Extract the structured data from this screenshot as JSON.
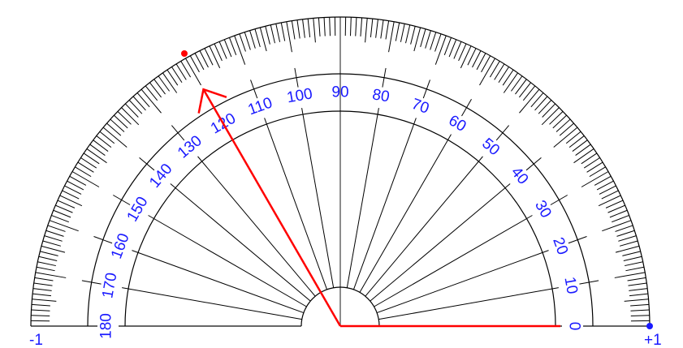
{
  "protractor": {
    "angle_labels": [
      "0",
      "10",
      "20",
      "30",
      "40",
      "50",
      "60",
      "70",
      "80",
      "90",
      "100",
      "110",
      "120",
      "130",
      "140",
      "150",
      "160",
      "170",
      "180"
    ],
    "left_end_label": "-1",
    "right_end_label": "+1",
    "arrow_angle_deg": 120,
    "colors": {
      "label": "#1a1aff",
      "arrow": "#ff0000",
      "tick": "#000000",
      "baseline": "#666666",
      "handle_right": "#1a1aff",
      "handle_top": "#ff0000"
    }
  }
}
